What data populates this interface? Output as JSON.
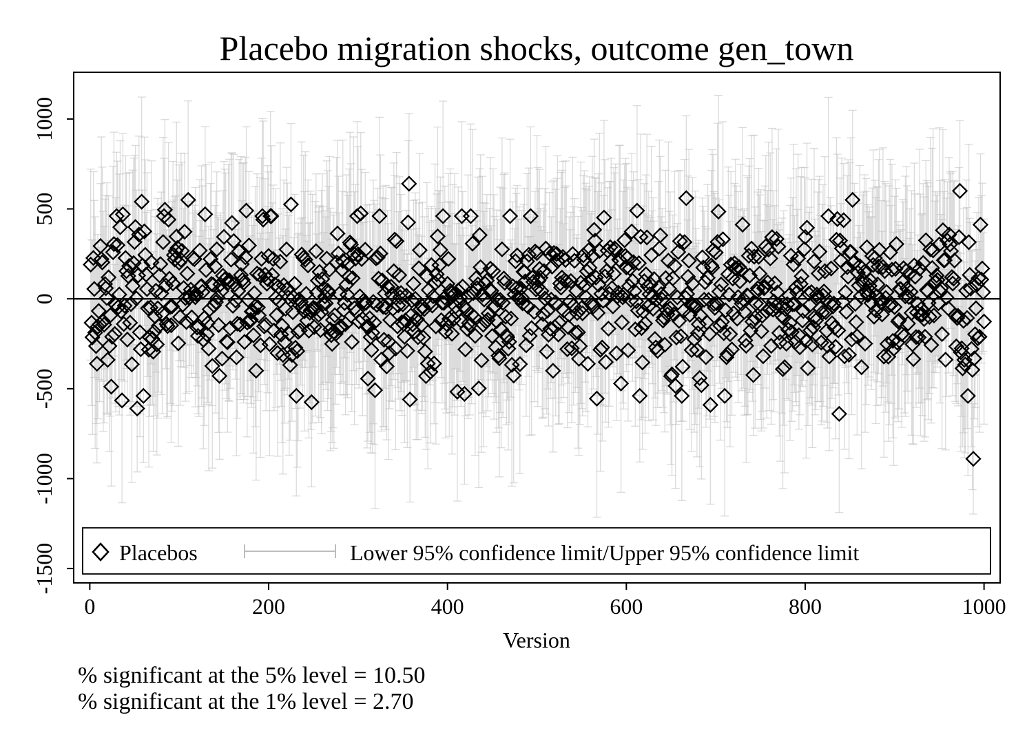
{
  "chart_data": {
    "type": "scatter",
    "title": "Placebo migration shocks, outcome gen_town",
    "xlabel": "Version",
    "ylabel": "",
    "xlim": [
      -18,
      1018
    ],
    "ylim": [
      -1580,
      1260
    ],
    "x_ticks": [
      0,
      200,
      400,
      600,
      800,
      1000
    ],
    "x_tick_labels": [
      "0",
      "200",
      "400",
      "600",
      "800",
      "1000"
    ],
    "y_ticks": [
      -1500,
      -1000,
      -500,
      0,
      500,
      1000
    ],
    "y_tick_labels": [
      "-1500",
      "-1000",
      "-500",
      "0",
      "500",
      "1000"
    ],
    "reference_line_y": 0,
    "grid": false,
    "legend_position": "bottom-inside",
    "series": [
      {
        "name": "Placebos",
        "marker": "hollow-diamond",
        "color": "#000000",
        "n": 1000,
        "x_range": [
          1,
          1000
        ],
        "estimate_spread_sd": 250,
        "highlighted_points": [
          {
            "x": 357,
            "y": 640
          },
          {
            "x": 973,
            "y": 600
          },
          {
            "x": 667,
            "y": 560
          },
          {
            "x": 853,
            "y": 550
          },
          {
            "x": 110,
            "y": 550
          },
          {
            "x": 58,
            "y": 540
          },
          {
            "x": 225,
            "y": 525
          },
          {
            "x": 84,
            "y": 495
          },
          {
            "x": 175,
            "y": 490
          },
          {
            "x": 612,
            "y": 490
          },
          {
            "x": 703,
            "y": 485
          },
          {
            "x": 303,
            "y": 475
          },
          {
            "x": 37,
            "y": 470
          },
          {
            "x": 129,
            "y": 470
          },
          {
            "x": 53,
            "y": -610
          },
          {
            "x": 838,
            "y": -640
          },
          {
            "x": 988,
            "y": -890
          },
          {
            "x": 567,
            "y": -555
          },
          {
            "x": 358,
            "y": -560
          },
          {
            "x": 694,
            "y": -590
          },
          {
            "x": 248,
            "y": -575
          },
          {
            "x": 36,
            "y": -565
          }
        ]
      },
      {
        "name": "Lower 95% confidence limit/Upper 95% confidence limit",
        "marker": "range-cap",
        "color": "#bdbdbd",
        "ci_half_width_typical": 480,
        "ci_half_width_range": [
          300,
          680
        ],
        "max_upper": 1170,
        "min_lower": -1280
      }
    ]
  },
  "notes": [
    "% significant at the 5% level = 10.50",
    "% significant at the 1% level = 2.70"
  ]
}
